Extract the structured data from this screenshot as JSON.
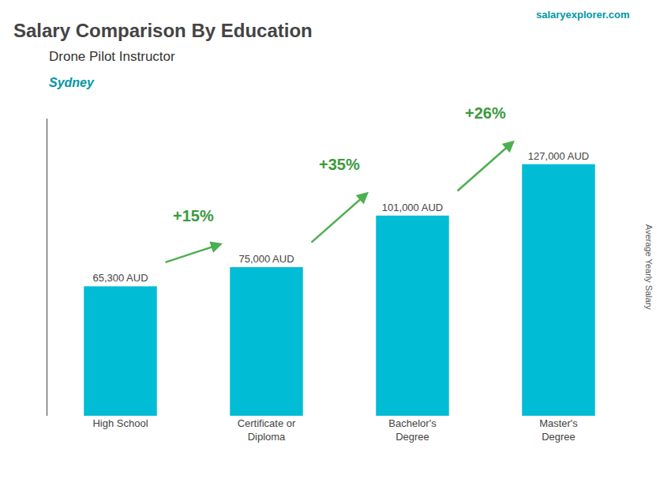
{
  "chart_data": {
    "type": "bar",
    "title": "Salary Comparison By Education",
    "subtitle": "Drone Pilot Instructor",
    "categories": [
      "High School",
      "Certificate or\nDiploma",
      "Bachelor's\nDegree",
      "Master's\nDegree"
    ],
    "values": [
      65300,
      75000,
      101000,
      127000
    ],
    "value_labels": [
      "65,300 AUD",
      "75,000 AUD",
      "101,000 AUD",
      "127,000 AUD"
    ],
    "data_labels": true,
    "color": "#00bcd4",
    "ylim": [
      0,
      150000
    ],
    "grid": false,
    "tick_labels": "x",
    "annotations": [
      "+15%",
      "+35%",
      "+26%",
      "Sydney",
      "Average Yearly Salary",
      "salaryexplorer.com"
    ]
  }
}
